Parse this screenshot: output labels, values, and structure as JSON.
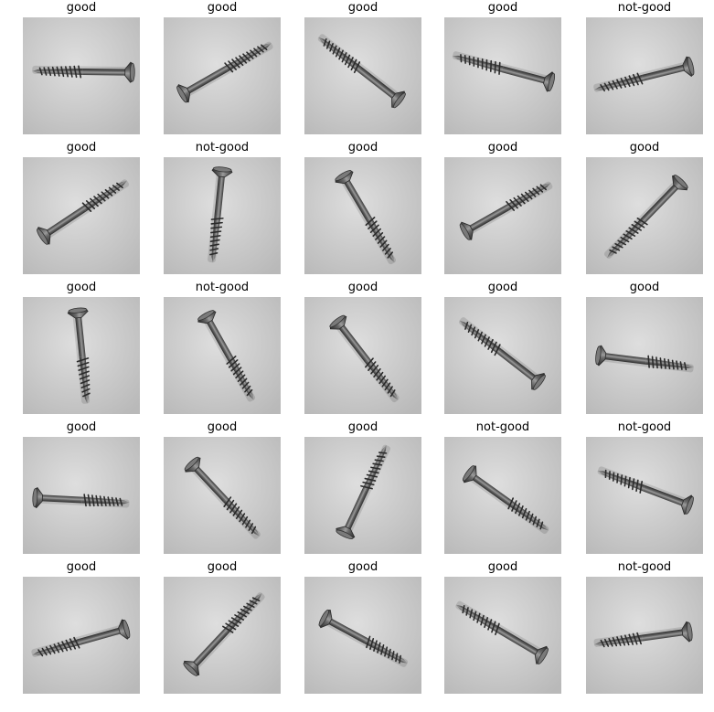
{
  "colors": {
    "background": "#ffffff",
    "label_text": "#000000",
    "tile_bg": "#cfcfcf"
  },
  "grid": {
    "rows": 5,
    "cols": 5,
    "items": [
      {
        "label": "good",
        "icon": "screw-photo"
      },
      {
        "label": "good",
        "icon": "screw-photo"
      },
      {
        "label": "good",
        "icon": "screw-photo"
      },
      {
        "label": "good",
        "icon": "screw-photo"
      },
      {
        "label": "not-good",
        "icon": "screw-photo"
      },
      {
        "label": "good",
        "icon": "screw-photo"
      },
      {
        "label": "not-good",
        "icon": "screw-photo"
      },
      {
        "label": "good",
        "icon": "screw-photo"
      },
      {
        "label": "good",
        "icon": "screw-photo"
      },
      {
        "label": "good",
        "icon": "screw-photo"
      },
      {
        "label": "good",
        "icon": "screw-photo"
      },
      {
        "label": "not-good",
        "icon": "screw-photo"
      },
      {
        "label": "good",
        "icon": "screw-photo"
      },
      {
        "label": "good",
        "icon": "screw-photo"
      },
      {
        "label": "good",
        "icon": "screw-photo"
      },
      {
        "label": "good",
        "icon": "screw-photo"
      },
      {
        "label": "good",
        "icon": "screw-photo"
      },
      {
        "label": "good",
        "icon": "screw-photo"
      },
      {
        "label": "not-good",
        "icon": "screw-photo"
      },
      {
        "label": "not-good",
        "icon": "screw-photo"
      },
      {
        "label": "good",
        "icon": "screw-photo"
      },
      {
        "label": "good",
        "icon": "screw-photo"
      },
      {
        "label": "good",
        "icon": "screw-photo"
      },
      {
        "label": "good",
        "icon": "screw-photo"
      },
      {
        "label": "not-good",
        "icon": "screw-photo"
      }
    ]
  }
}
